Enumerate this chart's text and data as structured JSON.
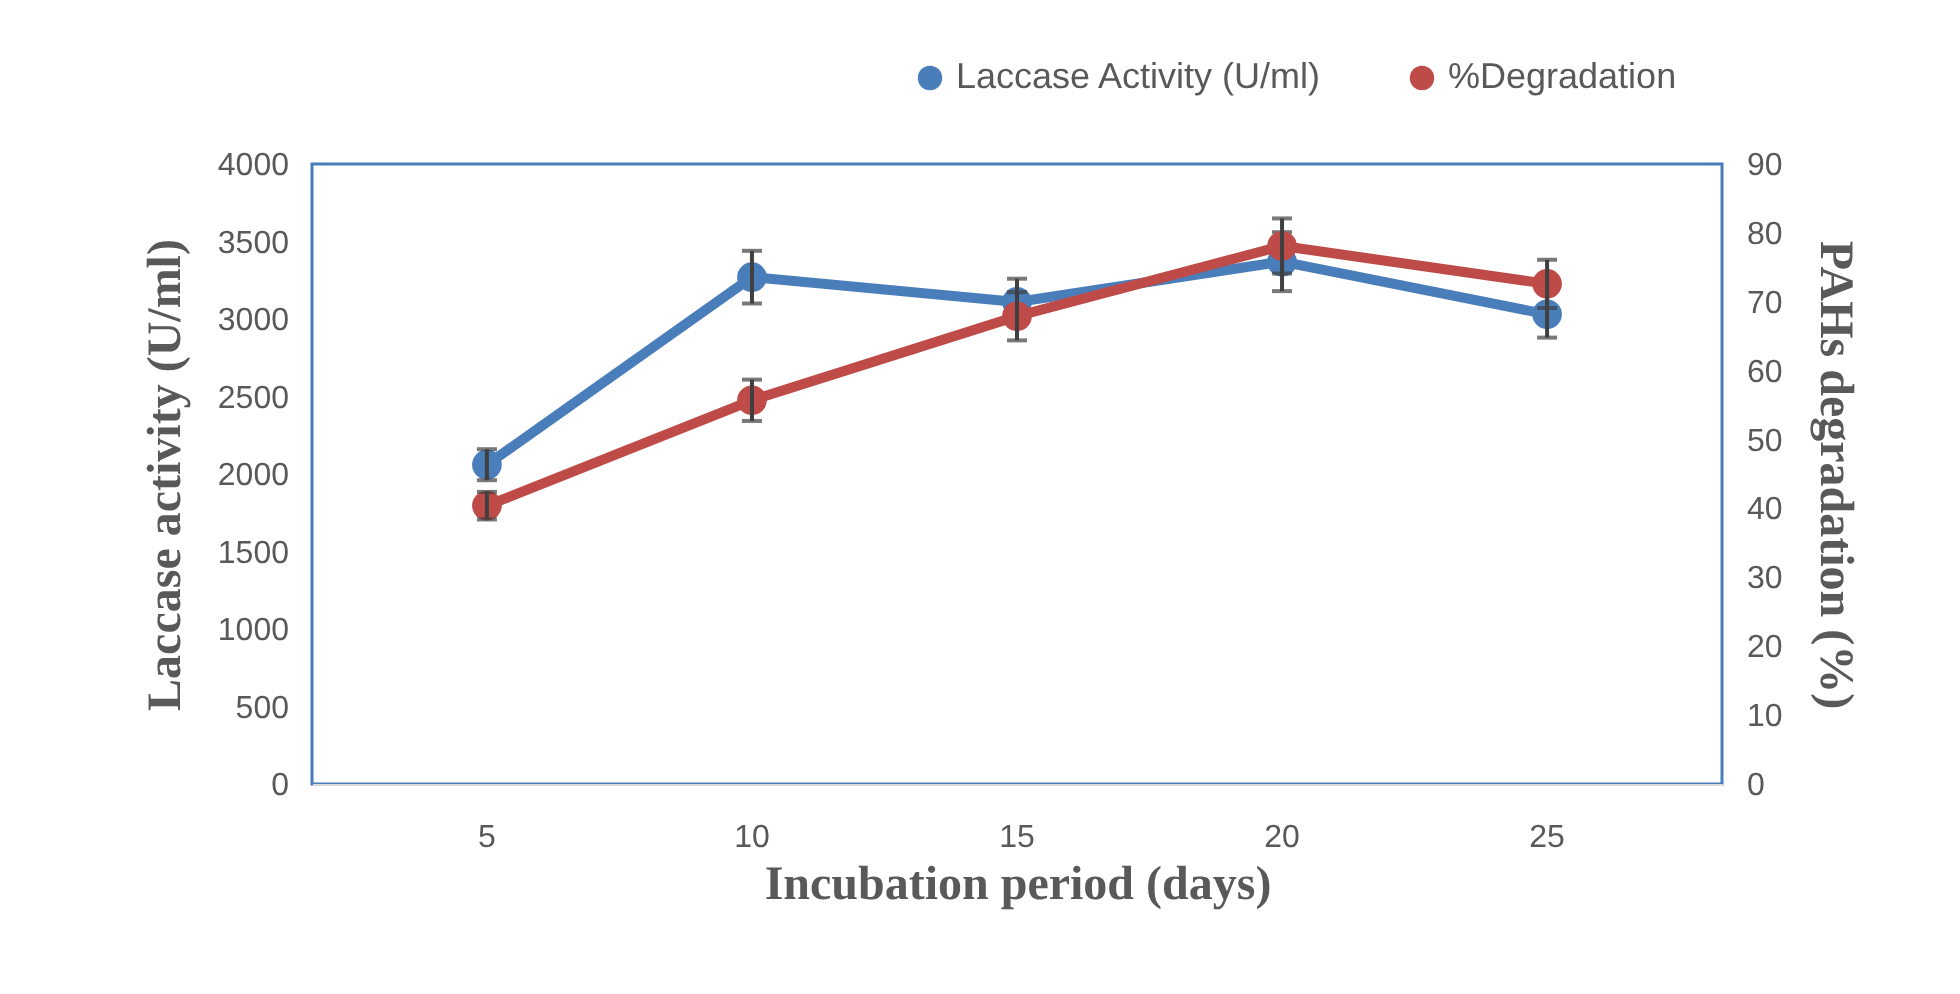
{
  "chart_data": {
    "type": "line",
    "xlabel": "Incubation period (days)",
    "ylabel": "Laccase activity (U/ml)",
    "y2label": "PAHs degradation (%)",
    "categories": [
      "5",
      "10",
      "15",
      "20",
      "25"
    ],
    "series": [
      {
        "name": "Laccase Activity (U/ml)",
        "color": "#4a7ebb",
        "values": [
          2060,
          3270,
          3110,
          3370,
          3030
        ],
        "errors": [
          100,
          170,
          150,
          190,
          150
        ]
      },
      {
        "name": "%Degradation",
        "color": "#be4b48",
        "axis": "y2",
        "values": [
          40.4,
          55.7,
          67.9,
          78.1,
          72.6
        ],
        "errors": [
          2,
          3,
          3.5,
          4,
          3.5
        ]
      }
    ],
    "ylim": [
      0,
      4000
    ],
    "yticks": [
      0,
      500,
      1000,
      1500,
      2000,
      2500,
      3000,
      3500,
      4000
    ],
    "y2lim": [
      0,
      90
    ],
    "y2ticks": [
      0,
      10,
      20,
      30,
      40,
      50,
      60,
      70,
      80,
      90
    ],
    "marker": "circle",
    "line_style": "solid",
    "grid": false,
    "legend": "top right"
  }
}
